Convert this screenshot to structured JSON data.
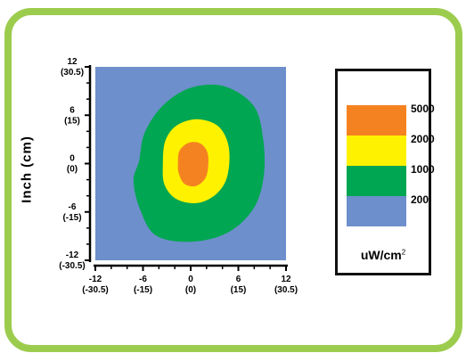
{
  "chart_data": {
    "type": "heatmap",
    "title": "",
    "ylabel": "Inch (cm)",
    "xlabel": "",
    "xlim": [
      -12,
      12
    ],
    "ylim": [
      -12,
      12
    ],
    "x_ticks": [
      {
        "value": -12,
        "label": "-12",
        "sublabel": "(-30.5)"
      },
      {
        "value": -6,
        "label": "-6",
        "sublabel": "(-15)"
      },
      {
        "value": 0,
        "label": "0",
        "sublabel": "(0)"
      },
      {
        "value": 6,
        "label": "6",
        "sublabel": "(15)"
      },
      {
        "value": 12,
        "label": "12",
        "sublabel": "(30.5)"
      }
    ],
    "y_ticks": [
      {
        "value": 12,
        "label": "12",
        "sublabel": "(30.5)"
      },
      {
        "value": 6,
        "label": "6",
        "sublabel": "(15)"
      },
      {
        "value": 0,
        "label": "0",
        "sublabel": "(0)"
      },
      {
        "value": -6,
        "label": "-6",
        "sublabel": "(-15)"
      },
      {
        "value": -12,
        "label": "-12",
        "sublabel": "(-30.5)"
      }
    ],
    "contour_levels": [
      {
        "level": 5000,
        "label": "5000",
        "color": "#f58220"
      },
      {
        "level": 2000,
        "label": "2000",
        "color": "#fff200"
      },
      {
        "level": 1000,
        "label": "1000",
        "color": "#00a651"
      },
      {
        "level": 200,
        "label": "200",
        "color": "#6d8fcb"
      }
    ],
    "contours": [
      {
        "level": 1000,
        "points": [
          [
            -6.5,
            0.3
          ],
          [
            -5.8,
            3.8
          ],
          [
            -3.5,
            7.2
          ],
          [
            0,
            9.4
          ],
          [
            4.2,
            9.6
          ],
          [
            7.9,
            7.2
          ],
          [
            9.1,
            3.2
          ],
          [
            9.2,
            -1.5
          ],
          [
            7.9,
            -5.6
          ],
          [
            4.6,
            -8.6
          ],
          [
            0,
            -9.7
          ],
          [
            -4.4,
            -8.9
          ],
          [
            -6.4,
            -5.6
          ],
          [
            -7.2,
            -2.1
          ]
        ]
      },
      {
        "level": 2000,
        "points": [
          [
            -3.5,
            0
          ],
          [
            -3.2,
            2.8
          ],
          [
            -1.8,
            4.7
          ],
          [
            0.8,
            5.5
          ],
          [
            3.5,
            4.6
          ],
          [
            4.8,
            2.0
          ],
          [
            4.6,
            -1.6
          ],
          [
            3.2,
            -3.8
          ],
          [
            0.8,
            -4.9
          ],
          [
            -1.8,
            -4.4
          ],
          [
            -3.3,
            -2.6
          ]
        ]
      },
      {
        "level": 5000,
        "points": [
          [
            -1.6,
            0
          ],
          [
            -1.4,
            1.6
          ],
          [
            -0.2,
            2.6
          ],
          [
            1.2,
            2.5
          ],
          [
            2.1,
            1.4
          ],
          [
            2.2,
            -0.4
          ],
          [
            1.8,
            -1.9
          ],
          [
            0.6,
            -2.8
          ],
          [
            -0.8,
            -2.5
          ],
          [
            -1.5,
            -1.2
          ]
        ]
      }
    ],
    "background_level": 200,
    "unit": "uW/cm",
    "unit_superscript": "2",
    "grid": false,
    "legend_placement": "right"
  }
}
